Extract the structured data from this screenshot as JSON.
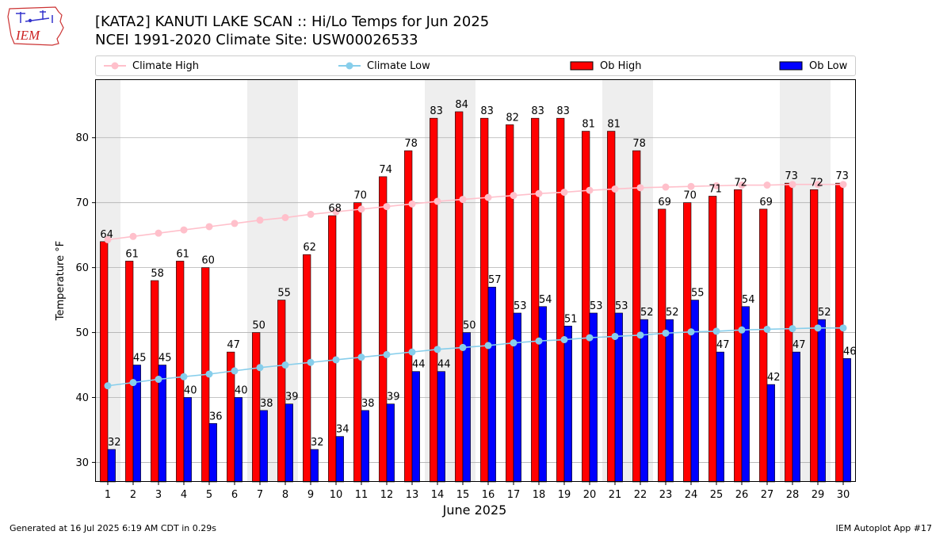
{
  "header": {
    "title_line1": "[KATA2] KANUTI LAKE SCAN :: Hi/Lo Temps for Jun 2025",
    "title_line2": "NCEI 1991-2020 Climate Site: USW00026533",
    "logo_text": "IEM"
  },
  "footer": {
    "left": "Generated at 16 Jul 2025 6:19 AM CDT in 0.29s",
    "right": "IEM Autoplot App #17"
  },
  "colors": {
    "ob_high": "#ff0000",
    "ob_low": "#0000ff",
    "climate_high": "#ffc0cb",
    "climate_low": "#87ceeb",
    "weekend_shade": "#eeeeee",
    "grid": "#b0b0b0"
  },
  "chart_data": {
    "type": "bar",
    "title": "[KATA2] KANUTI LAKE SCAN :: Hi/Lo Temps for Jun 2025",
    "subtitle": "NCEI 1991-2020 Climate Site: USW00026533",
    "xlabel": "June 2025",
    "ylabel": "Temperature °F",
    "ylim": [
      27,
      89
    ],
    "yticks": [
      30,
      40,
      50,
      60,
      70,
      80
    ],
    "grid": "y",
    "legend_placement": "top",
    "categories": [
      "1",
      "2",
      "3",
      "4",
      "5",
      "6",
      "7",
      "8",
      "9",
      "10",
      "11",
      "12",
      "13",
      "14",
      "15",
      "16",
      "17",
      "18",
      "19",
      "20",
      "21",
      "22",
      "23",
      "24",
      "25",
      "26",
      "27",
      "28",
      "29",
      "30"
    ],
    "shaded_days": [
      1,
      7,
      8,
      14,
      15,
      21,
      22,
      28,
      29
    ],
    "series": [
      {
        "name": "Ob High",
        "kind": "bar",
        "color": "#ff0000",
        "values": [
          64,
          61,
          58,
          61,
          60,
          47,
          50,
          55,
          62,
          68,
          70,
          74,
          78,
          83,
          84,
          83,
          82,
          83,
          83,
          81,
          81,
          78,
          69,
          70,
          71,
          72,
          69,
          73,
          72,
          73
        ]
      },
      {
        "name": "Ob Low",
        "kind": "bar",
        "color": "#0000ff",
        "values": [
          32,
          45,
          45,
          40,
          36,
          40,
          38,
          39,
          32,
          34,
          38,
          39,
          44,
          44,
          50,
          57,
          53,
          54,
          51,
          53,
          53,
          52,
          52,
          55,
          47,
          54,
          42,
          47,
          52,
          46
        ]
      },
      {
        "name": "Climate High",
        "kind": "line",
        "color": "#ffc0cb",
        "values": [
          64.3,
          64.8,
          65.3,
          65.8,
          66.3,
          66.8,
          67.3,
          67.7,
          68.2,
          68.6,
          69.0,
          69.4,
          69.8,
          70.2,
          70.5,
          70.8,
          71.1,
          71.4,
          71.6,
          71.9,
          72.1,
          72.3,
          72.4,
          72.5,
          72.6,
          72.7,
          72.7,
          72.8,
          72.8,
          72.8
        ]
      },
      {
        "name": "Climate Low",
        "kind": "line",
        "color": "#87ceeb",
        "values": [
          41.8,
          42.3,
          42.8,
          43.2,
          43.6,
          44.1,
          44.6,
          45.0,
          45.4,
          45.8,
          46.2,
          46.6,
          47.0,
          47.4,
          47.7,
          48.0,
          48.4,
          48.7,
          48.9,
          49.2,
          49.4,
          49.6,
          49.9,
          50.1,
          50.2,
          50.4,
          50.5,
          50.6,
          50.7,
          50.7
        ]
      }
    ]
  }
}
